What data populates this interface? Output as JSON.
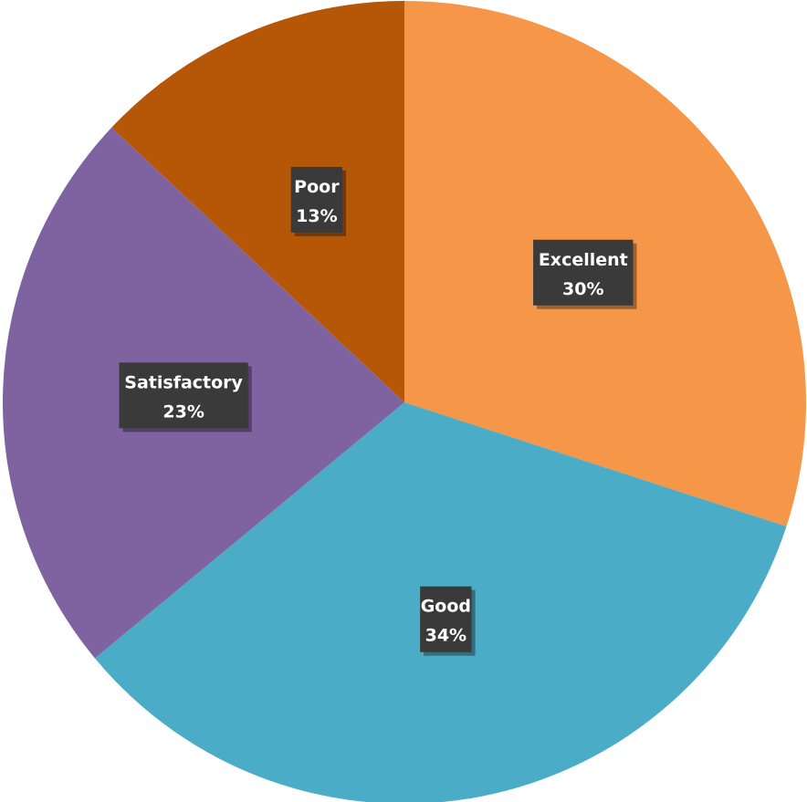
{
  "chart_data": {
    "type": "pie",
    "start_angle_deg": 0,
    "direction": "clockwise",
    "slices": [
      {
        "name": "Excellent",
        "value": 30,
        "label": "30%",
        "color": "#F59649"
      },
      {
        "name": "Good",
        "value": 34,
        "label": "34%",
        "color": "#4AACC6"
      },
      {
        "name": "Satisfactory",
        "value": 23,
        "label": "23%",
        "color": "#7F63A0"
      },
      {
        "name": "Poor",
        "value": 13,
        "label": "13%",
        "color": "#B65708"
      }
    ],
    "data_label_style": "dark-box-white-text"
  }
}
